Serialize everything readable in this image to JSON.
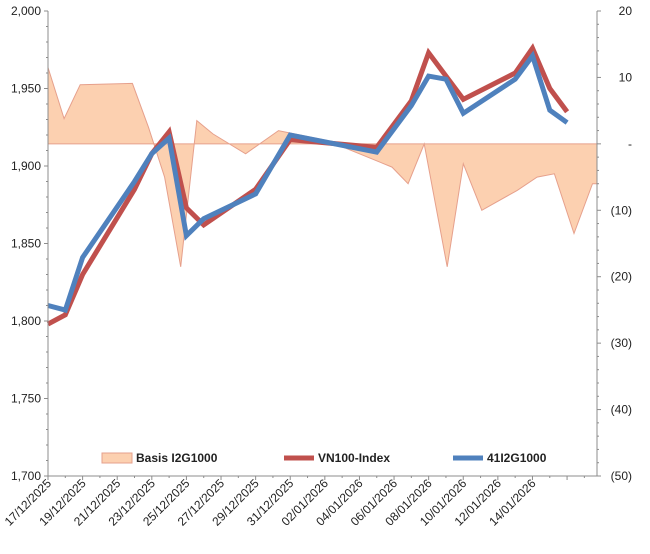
{
  "chart_data": {
    "type": "combo",
    "title": "",
    "xlabel": "",
    "ylabel": "",
    "grid": false,
    "legend_position": "bottom-center",
    "x": [
      "17/12/2025",
      "18/12/2025",
      "19/12/2025",
      "22/12/2025",
      "23/12/2025",
      "24/12/2025",
      "25/12/2025",
      "26/12/2025",
      "29/12/2025",
      "30/12/2025",
      "31/12/2025",
      "05/01/2026",
      "06/01/2026",
      "07/01/2026",
      "08/01/2026",
      "09/01/2026",
      "12/01/2026",
      "13/01/2026",
      "14/01/2026",
      "15/01/2026"
    ],
    "tick_labels": [
      "17/12/2025",
      "19/12/2025",
      "21/12/2025",
      "23/12/2025",
      "25/12/2025",
      "27/12/2025",
      "29/12/2025",
      "31/12/2025",
      "02/01/2026",
      "04/01/2026",
      "06/01/2026",
      "08/01/2026",
      "10/01/2026",
      "12/01/2026",
      "14/01/2026"
    ],
    "left_axis": {
      "ylim": [
        1700,
        2000
      ],
      "ticks": [
        1700,
        1750,
        1800,
        1850,
        1900,
        1950,
        2000
      ],
      "tick_labels": [
        "1,700",
        "1,750",
        "1,800",
        "1,850",
        "1,900",
        "1,950",
        "2,000"
      ]
    },
    "right_axis": {
      "ylim": [
        -50,
        20
      ],
      "ticks": [
        20,
        10,
        0,
        -10,
        -20,
        -30,
        -40,
        -50
      ],
      "tick_labels": [
        "20",
        "10",
        "-",
        "(10)",
        "(20)",
        "(30)",
        "(40)",
        "(50)"
      ]
    },
    "series": [
      {
        "name": "Basis I2G1000",
        "kind": "area",
        "axis": "right",
        "color": "#fcd0b0",
        "edge_color": "#e6a08c",
        "points": [
          [
            0,
            11.5
          ],
          [
            0.93,
            3.8
          ],
          [
            1.86,
            8.9
          ],
          [
            4.88,
            9.1
          ],
          [
            5.81,
            2.5
          ],
          [
            6.74,
            -5
          ],
          [
            7.67,
            -18.5
          ],
          [
            8.6,
            3.5
          ],
          [
            9.53,
            1.5
          ],
          [
            11.42,
            -1.5
          ],
          [
            13.32,
            2
          ],
          [
            16.12,
            0.5
          ],
          [
            19.88,
            -3.5
          ],
          [
            20.81,
            -6
          ],
          [
            21.74,
            0
          ],
          [
            23.07,
            -18.5
          ],
          [
            24,
            -3
          ],
          [
            25.07,
            -10
          ],
          [
            27.12,
            -7
          ],
          [
            28.27,
            -5
          ],
          [
            29.27,
            -4.5
          ],
          [
            30.4,
            -13.5
          ],
          [
            31.47,
            -6
          ],
          [
            31.73,
            -6
          ]
        ]
      },
      {
        "name": "VN100-Index",
        "kind": "line",
        "axis": "left",
        "color": "#c0504d",
        "points": [
          [
            0,
            1798
          ],
          [
            1,
            1804
          ],
          [
            2,
            1830
          ],
          [
            5,
            1885
          ],
          [
            6,
            1908
          ],
          [
            7,
            1922
          ],
          [
            8,
            1873
          ],
          [
            9,
            1862
          ],
          [
            12,
            1885
          ],
          [
            14,
            1917
          ],
          [
            19,
            1912
          ],
          [
            21,
            1942
          ],
          [
            22,
            1973
          ],
          [
            23,
            1958
          ],
          [
            24,
            1943
          ],
          [
            27,
            1960
          ],
          [
            28,
            1976
          ],
          [
            29,
            1950
          ],
          [
            30,
            1935
          ]
        ]
      },
      {
        "name": "41I2G1000",
        "kind": "line",
        "axis": "left",
        "color": "#4f81bd",
        "points": [
          [
            0,
            1810
          ],
          [
            1,
            1807
          ],
          [
            2,
            1841
          ],
          [
            5,
            1890
          ],
          [
            6,
            1908
          ],
          [
            7,
            1918
          ],
          [
            8,
            1855
          ],
          [
            9,
            1866
          ],
          [
            12,
            1882
          ],
          [
            14,
            1920
          ],
          [
            19,
            1909
          ],
          [
            21,
            1939
          ],
          [
            22,
            1958
          ],
          [
            23,
            1956
          ],
          [
            24,
            1934
          ],
          [
            27,
            1956
          ],
          [
            28,
            1971
          ],
          [
            29,
            1936
          ],
          [
            30,
            1928
          ]
        ]
      }
    ],
    "legend": [
      "Basis I2G1000",
      "VN100-Index",
      "41I2G1000"
    ]
  }
}
